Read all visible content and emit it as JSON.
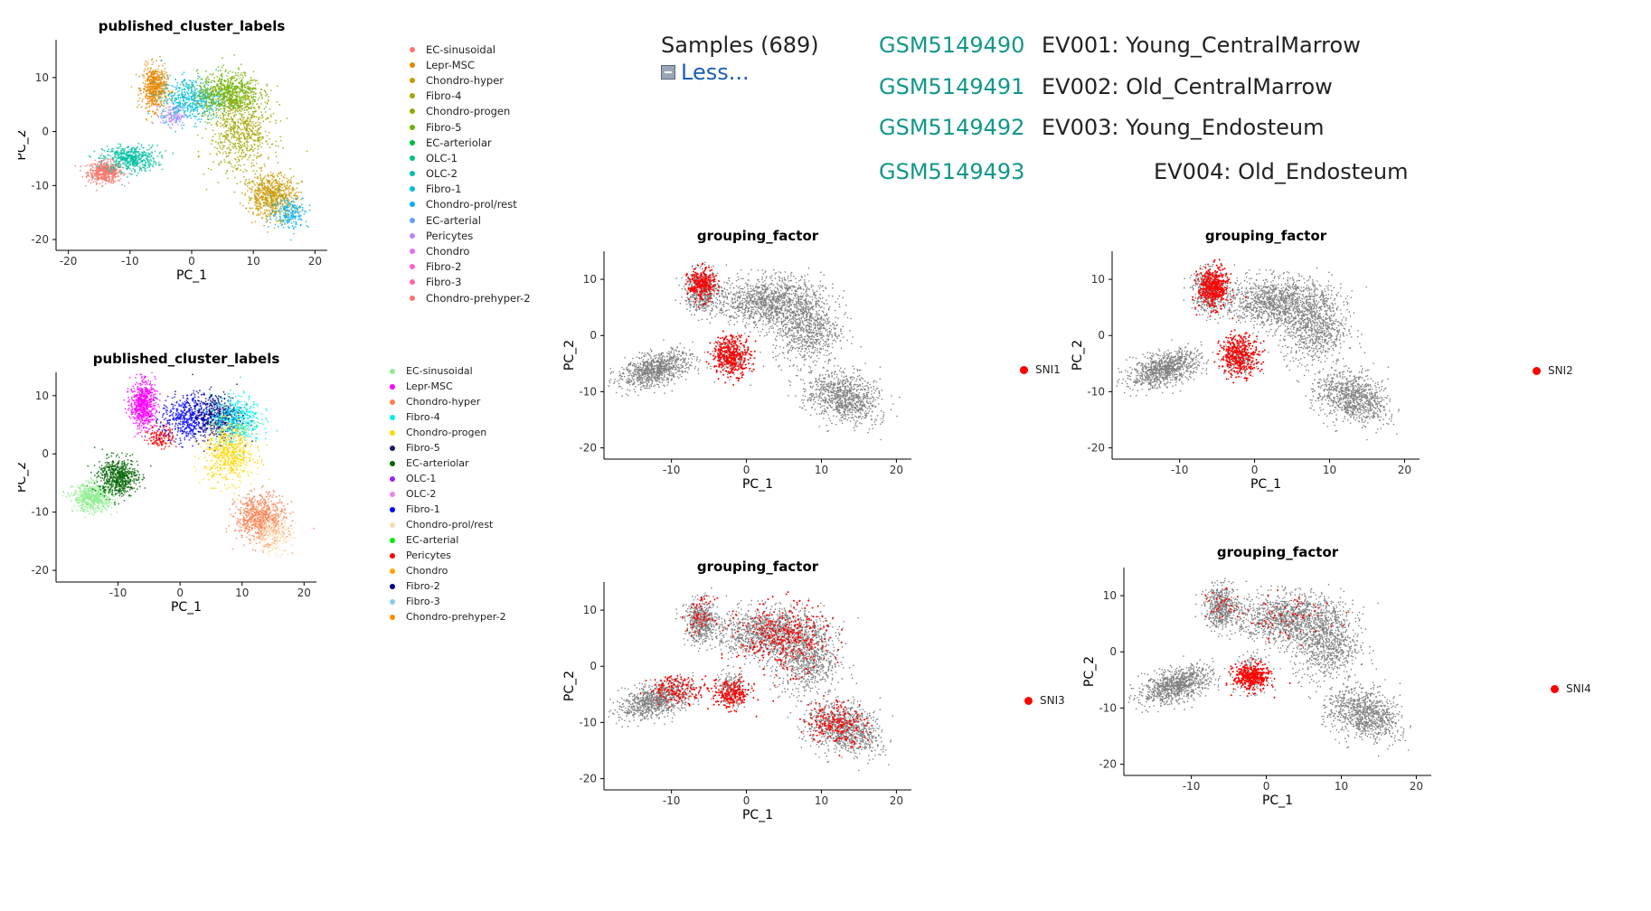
{
  "geo": {
    "samples_label": "Samples (689)",
    "less_label": "Less...",
    "rows": [
      {
        "accession": "GSM5149490",
        "title": "EV001: Young_CentralMarrow"
      },
      {
        "accession": "GSM5149491",
        "title": "EV002: Old_CentralMarrow"
      },
      {
        "accession": "GSM5149492",
        "title": "EV003: Young_Endosteum"
      },
      {
        "accession": "GSM5149493",
        "title": "EV004: Old_Endosteum"
      }
    ]
  },
  "colors": {
    "background_points": "#808080",
    "highlight_points": "#ff0000",
    "accession_link": "#11978a",
    "less_link": "#1a5fb4"
  },
  "chart_data": [
    {
      "id": "published_cluster_labels_1",
      "type": "scatter",
      "title": "published_cluster_labels",
      "xlabel": "PC_1",
      "ylabel": "PC_2",
      "xlim": [
        -22,
        22
      ],
      "ylim": [
        -22,
        17
      ],
      "xticks": [
        -20,
        -10,
        0,
        10,
        20
      ],
      "yticks": [
        -20,
        -10,
        0,
        10
      ],
      "legend": [
        {
          "label": "EC-sinusoidal",
          "color": "#F8766D"
        },
        {
          "label": "Lepr-MSC",
          "color": "#E58700"
        },
        {
          "label": "Chondro-hyper",
          "color": "#C99800"
        },
        {
          "label": "Fibro-4",
          "color": "#A3A500"
        },
        {
          "label": "Chondro-progen",
          "color": "#8fab00"
        },
        {
          "label": "Fibro-5",
          "color": "#6BB100"
        },
        {
          "label": "EC-arteriolar",
          "color": "#00BA38"
        },
        {
          "label": "OLC-1",
          "color": "#00BF7D"
        },
        {
          "label": "OLC-2",
          "color": "#00C0AF"
        },
        {
          "label": "Fibro-1",
          "color": "#00BCD8"
        },
        {
          "label": "Chondro-prol/rest",
          "color": "#00B0F6"
        },
        {
          "label": "EC-arterial",
          "color": "#619CFF"
        },
        {
          "label": "Pericytes",
          "color": "#B983FF"
        },
        {
          "label": "Chondro",
          "color": "#E76BF3"
        },
        {
          "label": "Fibro-2",
          "color": "#FD61D1"
        },
        {
          "label": "Fibro-3",
          "color": "#FF67A4"
        },
        {
          "label": "Chondro-prehyper-2",
          "color": "#F8766D"
        }
      ],
      "legend_position": "right",
      "clusters": [
        {
          "cx": -14,
          "cy": -7.5,
          "sx": 1.4,
          "sy": 1.0,
          "n": 500,
          "color": "#F8766D"
        },
        {
          "cx": -10,
          "cy": -5,
          "sx": 2.2,
          "sy": 1.2,
          "n": 500,
          "color": "#00BFA0"
        },
        {
          "cx": -6,
          "cy": 8,
          "sx": 1.0,
          "sy": 2.0,
          "n": 550,
          "color": "#E58700"
        },
        {
          "cx": -3,
          "cy": 3,
          "sx": 1.0,
          "sy": 1.0,
          "n": 120,
          "color": "#B983FF"
        },
        {
          "cx": 0,
          "cy": 6,
          "sx": 2.5,
          "sy": 2.0,
          "n": 500,
          "color": "#00BCD8"
        },
        {
          "cx": 6,
          "cy": 7,
          "sx": 2.5,
          "sy": 2.0,
          "n": 700,
          "color": "#6BB100"
        },
        {
          "cx": 8,
          "cy": 0,
          "sx": 2.5,
          "sy": 4.0,
          "n": 700,
          "color": "#A3A500"
        },
        {
          "cx": 13,
          "cy": -12,
          "sx": 2.0,
          "sy": 2.0,
          "n": 700,
          "color": "#C99800"
        },
        {
          "cx": 16,
          "cy": -15,
          "sx": 1.5,
          "sy": 1.5,
          "n": 200,
          "color": "#00B0F6"
        }
      ]
    },
    {
      "id": "published_cluster_labels_2",
      "type": "scatter",
      "title": "published_cluster_labels",
      "xlabel": "PC_1",
      "ylabel": "PC_2",
      "xlim": [
        -20,
        22
      ],
      "ylim": [
        -22,
        14
      ],
      "xticks": [
        -10,
        0,
        10,
        20
      ],
      "yticks": [
        -20,
        -10,
        0,
        10
      ],
      "legend": [
        {
          "label": "EC-sinusoidal",
          "color": "#90EE90"
        },
        {
          "label": "Lepr-MSC",
          "color": "#FF00FF"
        },
        {
          "label": "Chondro-hyper",
          "color": "#FA8050"
        },
        {
          "label": "Fibro-4",
          "color": "#00EEEE"
        },
        {
          "label": "Chondro-progen",
          "color": "#FFD700"
        },
        {
          "label": "Fibro-5",
          "color": "#191970"
        },
        {
          "label": "EC-arteriolar",
          "color": "#006400"
        },
        {
          "label": "OLC-1",
          "color": "#A020F0"
        },
        {
          "label": "OLC-2",
          "color": "#EE82EE"
        },
        {
          "label": "Fibro-1",
          "color": "#0000FF"
        },
        {
          "label": "Chondro-prol/rest",
          "color": "#F5DEB3"
        },
        {
          "label": "EC-arterial",
          "color": "#00EE00"
        },
        {
          "label": "Pericytes",
          "color": "#FF0000"
        },
        {
          "label": "Chondro",
          "color": "#FFA500"
        },
        {
          "label": "Fibro-2",
          "color": "#000080"
        },
        {
          "label": "Fibro-3",
          "color": "#87CEEB"
        },
        {
          "label": "Chondro-prehyper-2",
          "color": "#FF8C00"
        }
      ],
      "legend_position": "right",
      "clusters": [
        {
          "cx": -14,
          "cy": -7.5,
          "sx": 1.6,
          "sy": 1.2,
          "n": 600,
          "color": "#90EE90"
        },
        {
          "cx": -10,
          "cy": -4,
          "sx": 1.6,
          "sy": 1.6,
          "n": 600,
          "color": "#006400"
        },
        {
          "cx": -6,
          "cy": 8.5,
          "sx": 1.0,
          "sy": 2.0,
          "n": 650,
          "color": "#FF00FF"
        },
        {
          "cx": -3,
          "cy": 3,
          "sx": 1.0,
          "sy": 1.0,
          "n": 150,
          "color": "#FF0000"
        },
        {
          "cx": 1,
          "cy": 6,
          "sx": 2.0,
          "sy": 2.0,
          "n": 450,
          "color": "#0000FF"
        },
        {
          "cx": 6,
          "cy": 6.5,
          "sx": 2.0,
          "sy": 2.0,
          "n": 500,
          "color": "#000080"
        },
        {
          "cx": 9,
          "cy": 6,
          "sx": 2.0,
          "sy": 2.0,
          "n": 450,
          "color": "#00EEEE"
        },
        {
          "cx": 8,
          "cy": 0,
          "sx": 2.0,
          "sy": 2.5,
          "n": 600,
          "color": "#FFD700"
        },
        {
          "cx": 13,
          "cy": -11,
          "sx": 2.0,
          "sy": 2.0,
          "n": 700,
          "color": "#FA8050"
        },
        {
          "cx": 15,
          "cy": -14,
          "sx": 1.5,
          "sy": 1.5,
          "n": 250,
          "color": "#F5DEB3"
        }
      ]
    },
    {
      "id": "grouping_factor_sni1",
      "type": "scatter",
      "title": "grouping_factor",
      "xlabel": "PC_1",
      "ylabel": "PC_2",
      "xlim": [
        -19,
        22
      ],
      "ylim": [
        -22,
        15
      ],
      "xticks": [
        -10,
        0,
        10,
        20
      ],
      "yticks": [
        -20,
        -10,
        0,
        10
      ],
      "legend": [
        {
          "label": "SNI1",
          "color": "#ff0000"
        }
      ],
      "highlight": [
        {
          "cx": -6,
          "cy": 9,
          "sx": 0.9,
          "sy": 1.4,
          "n": 250
        },
        {
          "cx": -2,
          "cy": -3.5,
          "sx": 1.3,
          "sy": 1.8,
          "n": 350
        }
      ]
    },
    {
      "id": "grouping_factor_sni2",
      "type": "scatter",
      "title": "grouping_factor",
      "xlabel": "PC_1",
      "ylabel": "PC_2",
      "xlim": [
        -19,
        22
      ],
      "ylim": [
        -22,
        15
      ],
      "xticks": [
        -10,
        0,
        10,
        20
      ],
      "yticks": [
        -20,
        -10,
        0,
        10
      ],
      "legend": [
        {
          "label": "SNI2",
          "color": "#ff0000"
        }
      ],
      "highlight": [
        {
          "cx": -5.5,
          "cy": 8.5,
          "sx": 1.0,
          "sy": 1.8,
          "n": 400
        },
        {
          "cx": -2,
          "cy": -3.5,
          "sx": 1.3,
          "sy": 1.8,
          "n": 350
        }
      ]
    },
    {
      "id": "grouping_factor_sni3",
      "type": "scatter",
      "title": "grouping_factor",
      "xlabel": "PC_1",
      "ylabel": "PC_2",
      "xlim": [
        -19,
        22
      ],
      "ylim": [
        -22,
        15
      ],
      "xticks": [
        -10,
        0,
        10,
        20
      ],
      "yticks": [
        -20,
        -10,
        0,
        10
      ],
      "legend": [
        {
          "label": "SNI3",
          "color": "#ff0000"
        }
      ],
      "highlight": [
        {
          "cx": -6,
          "cy": 9,
          "sx": 0.9,
          "sy": 1.5,
          "n": 60
        },
        {
          "cx": -2,
          "cy": -5,
          "sx": 1.3,
          "sy": 1.3,
          "n": 200
        },
        {
          "cx": 5,
          "cy": 5,
          "sx": 3.0,
          "sy": 3.0,
          "n": 350
        },
        {
          "cx": -9,
          "cy": -4,
          "sx": 2.0,
          "sy": 1.2,
          "n": 150
        },
        {
          "cx": 12,
          "cy": -10,
          "sx": 2.0,
          "sy": 2.0,
          "n": 200
        }
      ]
    },
    {
      "id": "grouping_factor_sni4",
      "type": "scatter",
      "title": "grouping_factor",
      "xlabel": "PC_1",
      "ylabel": "PC_2",
      "xlim": [
        -19,
        22
      ],
      "ylim": [
        -22,
        15
      ],
      "xticks": [
        -10,
        0,
        10,
        20
      ],
      "yticks": [
        -20,
        -10,
        0,
        10
      ],
      "legend": [
        {
          "label": "SNI4",
          "color": "#ff0000"
        }
      ],
      "highlight": [
        {
          "cx": -2,
          "cy": -4.5,
          "sx": 1.2,
          "sy": 1.2,
          "n": 350
        },
        {
          "cx": 3,
          "cy": 6,
          "sx": 3.0,
          "sy": 2.0,
          "n": 60
        },
        {
          "cx": -6,
          "cy": 8,
          "sx": 1.0,
          "sy": 1.5,
          "n": 30
        }
      ]
    }
  ]
}
